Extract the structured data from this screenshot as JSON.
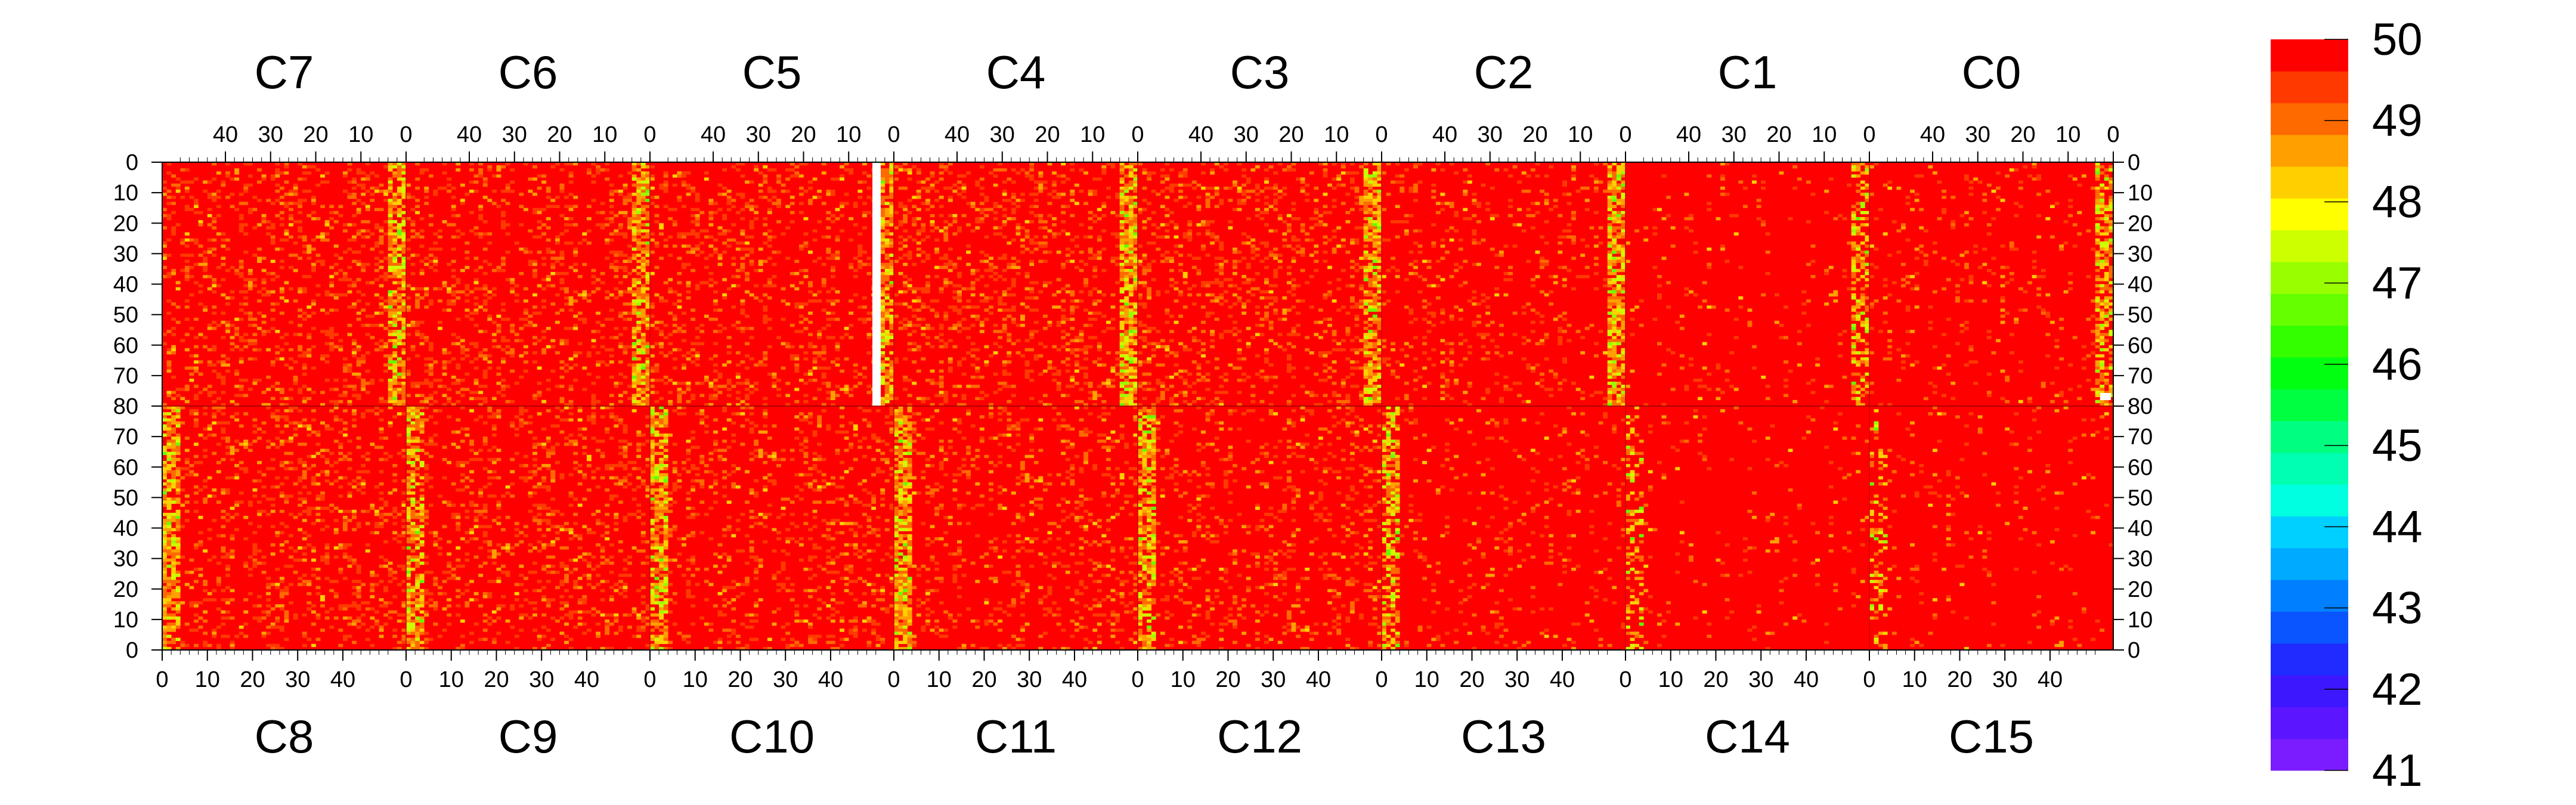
{
  "chart_data": {
    "type": "heatmap",
    "title": "",
    "xlabel": "",
    "ylabel": "",
    "zlim": [
      41,
      50
    ],
    "colorbar": {
      "ticks": [
        41,
        42,
        43,
        44,
        45,
        46,
        47,
        48,
        49,
        50
      ],
      "colors": [
        "#7a1cff",
        "#5b16ff",
        "#3d18ff",
        "#1f2bff",
        "#0a55ff",
        "#0080ff",
        "#00aaff",
        "#00d0ff",
        "#00ffe0",
        "#00ffb0",
        "#00ff80",
        "#00ff40",
        "#00ff10",
        "#33ff00",
        "#66ff00",
        "#99ff00",
        "#ccff00",
        "#ffff00",
        "#ffd000",
        "#ffa000",
        "#ff6a00",
        "#ff3a00",
        "#ff0000"
      ]
    },
    "sector_rows": [
      {
        "position": "top",
        "y_ticks": [
          0,
          10,
          20,
          30,
          40,
          50,
          60,
          70,
          80
        ],
        "x_ticks": [
          40,
          30,
          20,
          10,
          0
        ],
        "sectors": [
          {
            "label": "C7",
            "noise": 0.22,
            "stripe": 0.75
          },
          {
            "label": "C6",
            "noise": 0.2,
            "stripe": 0.7
          },
          {
            "label": "C5",
            "noise": 0.2,
            "stripe": 0.7
          },
          {
            "label": "C4",
            "noise": 0.22,
            "stripe": 0.8
          },
          {
            "label": "C3",
            "noise": 0.2,
            "stripe": 0.7
          },
          {
            "label": "C2",
            "noise": 0.12,
            "stripe": 0.75
          },
          {
            "label": "C1",
            "noise": 0.05,
            "stripe": 0.5
          },
          {
            "label": "C0",
            "noise": 0.08,
            "stripe": 0.6
          }
        ]
      },
      {
        "position": "bottom",
        "y_ticks": [
          80,
          70,
          60,
          50,
          40,
          30,
          20,
          10,
          0
        ],
        "x_ticks": [
          0,
          10,
          20,
          30,
          40
        ],
        "sectors": [
          {
            "label": "C8",
            "noise": 0.2,
            "stripe": 0.7
          },
          {
            "label": "C9",
            "noise": 0.2,
            "stripe": 0.7
          },
          {
            "label": "C10",
            "noise": 0.18,
            "stripe": 0.7
          },
          {
            "label": "C11",
            "noise": 0.16,
            "stripe": 0.75
          },
          {
            "label": "C12",
            "noise": 0.16,
            "stripe": 0.7
          },
          {
            "label": "C13",
            "noise": 0.08,
            "stripe": 0.6
          },
          {
            "label": "C14",
            "noise": 0.04,
            "stripe": 0.3
          },
          {
            "label": "C15",
            "noise": 0.05,
            "stripe": 0.3
          }
        ]
      }
    ],
    "grid": false,
    "legend": "right"
  }
}
